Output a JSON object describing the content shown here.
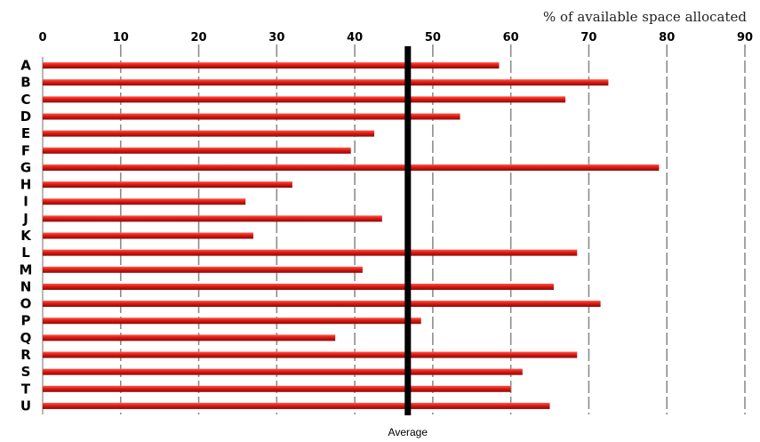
{
  "chart_data": {
    "type": "bar",
    "orientation": "horizontal",
    "title": "% of available space allocated",
    "xlabel": "",
    "ylabel": "",
    "xlim": [
      0,
      90
    ],
    "xticks": [
      "0",
      "10",
      "20",
      "30",
      "40",
      "50",
      "60",
      "70",
      "80",
      "90"
    ],
    "x_axis_position": "top",
    "grid": "vertical dashed",
    "categories": [
      "A",
      "B",
      "C",
      "D",
      "E",
      "F",
      "G",
      "H",
      "I",
      "J",
      "K",
      "L",
      "M",
      "N",
      "O",
      "P",
      "Q",
      "R",
      "S",
      "T",
      "U"
    ],
    "values": [
      58.5,
      72.5,
      67,
      53.5,
      42.5,
      39.5,
      79,
      32,
      26,
      43.5,
      27,
      68.5,
      41,
      65.5,
      71.5,
      48.5,
      37.5,
      68.5,
      61.5,
      60,
      65
    ],
    "bar_color": "#cc1111",
    "reference_line": {
      "label": "Average",
      "value": 46.8,
      "color": "#000000"
    }
  }
}
